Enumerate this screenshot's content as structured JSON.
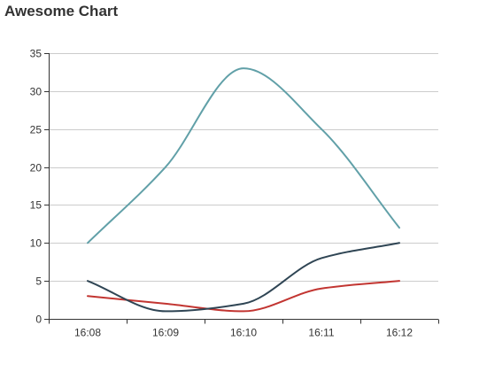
{
  "chart_data": {
    "type": "line",
    "title": "Awesome Chart",
    "xlabel": "",
    "ylabel": "",
    "categories": [
      "16:08",
      "16:09",
      "16:10",
      "16:11",
      "16:12"
    ],
    "ylim": [
      0,
      35
    ],
    "yticks": [
      0,
      5,
      10,
      15,
      20,
      25,
      30,
      35
    ],
    "grid": true,
    "smooth": true,
    "series": [
      {
        "color": "#61a0a8",
        "values": [
          10,
          20,
          33,
          25,
          12
        ]
      },
      {
        "color": "#2f4554",
        "values": [
          5,
          1,
          2,
          8,
          10
        ]
      },
      {
        "color": "#c23531",
        "values": [
          3,
          2,
          1,
          4,
          5
        ]
      }
    ],
    "colors": {
      "axis": "#333333",
      "grid": "#cccccc"
    }
  }
}
